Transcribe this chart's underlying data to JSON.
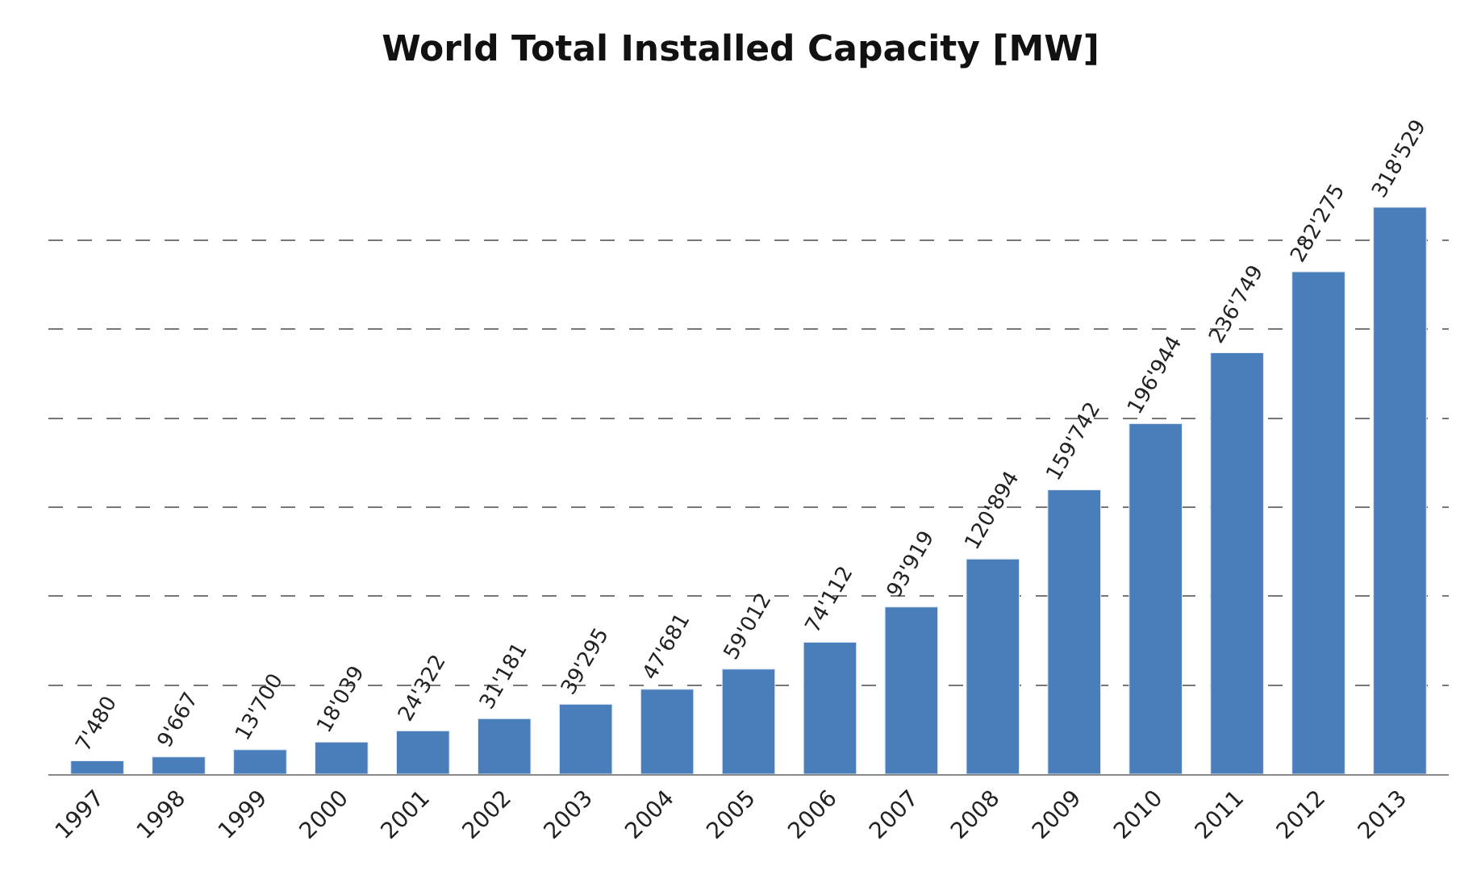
{
  "chart_data": {
    "type": "bar",
    "title": "World Total Installed Capacity [MW]",
    "categories": [
      "1997",
      "1998",
      "1999",
      "2000",
      "2001",
      "2002",
      "2003",
      "2004",
      "2005",
      "2006",
      "2007",
      "2008",
      "2009",
      "2010",
      "2011",
      "2012",
      "2013"
    ],
    "values": [
      7480,
      9667,
      13700,
      18039,
      24322,
      31181,
      39295,
      47681,
      59012,
      74112,
      93919,
      120894,
      159742,
      196944,
      236749,
      282275,
      318529
    ],
    "value_labels": [
      "7'480",
      "9'667",
      "13'700",
      "18'039",
      "24'322",
      "31'181",
      "39'295",
      "47'681",
      "59'012",
      "74'112",
      "93'919",
      "120'894",
      "159'742",
      "196'944",
      "236'749",
      "282'275",
      "318'529"
    ],
    "color": "#4a7ebb",
    "tick_labels": "x",
    "grid": "y",
    "line_style": "dashed",
    "legend": false
  }
}
